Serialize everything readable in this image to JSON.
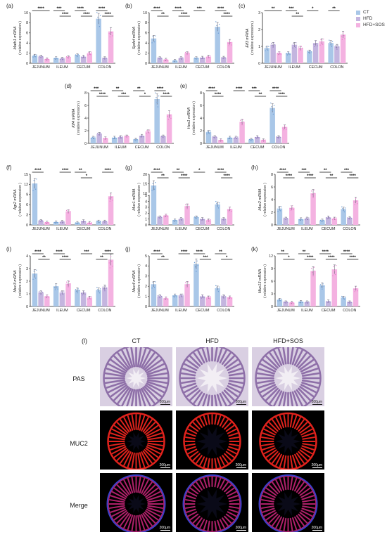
{
  "categories": [
    "JEJUNUM",
    "ILEUM",
    "CECUM",
    "COLON"
  ],
  "legend": [
    {
      "name": "CT",
      "color": "#a9c7e8"
    },
    {
      "name": "HFD",
      "color": "#c4b5df"
    },
    {
      "name": "HFD+SOS",
      "color": "#f4b2e1"
    }
  ],
  "colors": {
    "CT": "#a9c7e8",
    "HFD": "#c4b5df",
    "HFDSOS": "#f4b2e1",
    "sig": "#111111"
  },
  "chart_data": [
    {
      "panel": "(a)",
      "type": "bar",
      "gene": "Math1",
      "ylabel_italic": "Math1 mRNA",
      "ylabel_sub": "( relative expression )",
      "ylim": [
        0,
        10
      ],
      "ticks": [
        0,
        2,
        4,
        6,
        8,
        10
      ],
      "categories": [
        "JEJUNUM",
        "ILEUM",
        "CECUM",
        "COLON"
      ],
      "series": [
        {
          "name": "CT",
          "values": [
            1.5,
            1.0,
            1.6,
            8.8
          ]
        },
        {
          "name": "HFD",
          "values": [
            1.3,
            0.9,
            1.3,
            1.0
          ]
        },
        {
          "name": "HFD+SOS",
          "values": [
            0.8,
            1.2,
            2.0,
            6.3
          ]
        }
      ],
      "sig": [
        {
          "g": 0,
          "a": 0,
          "b": 2,
          "lvl": 0,
          "t": "****"
        },
        {
          "g": 1,
          "a": 0,
          "b": 1,
          "lvl": 0,
          "t": "***"
        },
        {
          "g": 1,
          "a": 1,
          "b": 2,
          "lvl": 1,
          "t": "****"
        },
        {
          "g": 2,
          "a": 0,
          "b": 1,
          "lvl": 0,
          "t": "****"
        },
        {
          "g": 2,
          "a": 1,
          "b": 2,
          "lvl": 1,
          "t": "****"
        },
        {
          "g": 3,
          "a": 0,
          "b": 1,
          "lvl": 0,
          "t": "****"
        },
        {
          "g": 3,
          "a": 1,
          "b": 2,
          "lvl": 1,
          "t": "****"
        }
      ]
    },
    {
      "panel": "(b)",
      "type": "bar",
      "gene": "Spdef",
      "ylabel_italic": "Spdef mRNA",
      "ylabel_sub": "( relative expression )",
      "ylim": [
        0,
        10
      ],
      "ticks": [
        0,
        2,
        4,
        6,
        8,
        10
      ],
      "categories": [
        "JEJUNUM",
        "ILEUM",
        "CECUM",
        "COLON"
      ],
      "series": [
        {
          "name": "CT",
          "values": [
            4.9,
            0.5,
            1.0,
            7.2
          ]
        },
        {
          "name": "HFD",
          "values": [
            1.0,
            1.0,
            1.1,
            1.1
          ]
        },
        {
          "name": "HFD+SOS",
          "values": [
            0.7,
            2.0,
            1.3,
            4.2
          ]
        }
      ],
      "sig": [
        {
          "g": 0,
          "a": 0,
          "b": 1,
          "lvl": 0,
          "t": "****"
        },
        {
          "g": 0,
          "a": 1,
          "b": 2,
          "lvl": 1,
          "t": "**"
        },
        {
          "g": 1,
          "a": 0,
          "b": 1,
          "lvl": 0,
          "t": "****"
        },
        {
          "g": 1,
          "a": 1,
          "b": 2,
          "lvl": 1,
          "t": "****"
        },
        {
          "g": 2,
          "a": 0,
          "b": 1,
          "lvl": 0,
          "t": "***"
        },
        {
          "g": 3,
          "a": 0,
          "b": 1,
          "lvl": 0,
          "t": "****"
        },
        {
          "g": 3,
          "a": 1,
          "b": 2,
          "lvl": 1,
          "t": "****"
        }
      ]
    },
    {
      "panel": "(c)",
      "type": "bar",
      "gene": "Elf3",
      "ylabel_italic": "Elf3 mRNA",
      "ylabel_sub": "( relative expression )",
      "ylim": [
        0,
        3
      ],
      "ticks": [
        0,
        1,
        2,
        3
      ],
      "categories": [
        "JEJUNUM",
        "ILEUM",
        "CECUM",
        "COLON"
      ],
      "series": [
        {
          "name": "CT",
          "values": [
            0.9,
            0.6,
            0.7,
            1.2
          ]
        },
        {
          "name": "HFD",
          "values": [
            1.1,
            1.1,
            1.2,
            1.0
          ]
        },
        {
          "name": "HFD+SOS",
          "values": [
            0.6,
            0.9,
            1.3,
            1.7
          ]
        }
      ],
      "sig": [
        {
          "g": 0,
          "a": 0,
          "b": 2,
          "lvl": 0,
          "t": "**"
        },
        {
          "g": 1,
          "a": 0,
          "b": 1,
          "lvl": 0,
          "t": "***"
        },
        {
          "g": 1,
          "a": 1,
          "b": 2,
          "lvl": 1,
          "t": "**"
        },
        {
          "g": 2,
          "a": 0,
          "b": 1,
          "lvl": 0,
          "t": "*"
        },
        {
          "g": 3,
          "a": 0,
          "b": 1,
          "lvl": 0,
          "t": "**"
        }
      ]
    },
    {
      "panel": "(d)",
      "type": "bar",
      "gene": "Klf4",
      "ylabel_italic": "Klf4 mRNA",
      "ylabel_sub": "( relative expression )",
      "ylim": [
        0,
        8
      ],
      "ticks": [
        0,
        2,
        4,
        6,
        8
      ],
      "categories": [
        "JEJUNUM",
        "ILEUM",
        "CECUM",
        "COLON"
      ],
      "series": [
        {
          "name": "CT",
          "values": [
            0.9,
            0.9,
            0.6,
            7.0
          ]
        },
        {
          "name": "HFD",
          "values": [
            1.5,
            1.0,
            1.2,
            1.1
          ]
        },
        {
          "name": "HFD+SOS",
          "values": [
            0.8,
            1.1,
            1.9,
            4.6
          ]
        }
      ],
      "sig": [
        {
          "g": 0,
          "a": 0,
          "b": 1,
          "lvl": 0,
          "t": "***"
        },
        {
          "g": 0,
          "a": 1,
          "b": 2,
          "lvl": 1,
          "t": "****"
        },
        {
          "g": 1,
          "a": 0,
          "b": 1,
          "lvl": 0,
          "t": "**"
        },
        {
          "g": 1,
          "a": 1,
          "b": 2,
          "lvl": 1,
          "t": "***"
        },
        {
          "g": 2,
          "a": 0,
          "b": 1,
          "lvl": 0,
          "t": "**"
        },
        {
          "g": 2,
          "a": 1,
          "b": 2,
          "lvl": 1,
          "t": "*"
        },
        {
          "g": 3,
          "a": 0,
          "b": 1,
          "lvl": 0,
          "t": "****"
        },
        {
          "g": 3,
          "a": 1,
          "b": 2,
          "lvl": 1,
          "t": "****"
        }
      ]
    },
    {
      "panel": "(e)",
      "type": "bar",
      "gene": "Hes1",
      "ylabel_italic": "Hes1 mRNA",
      "ylabel_sub": "( relative expression )",
      "ylim": [
        0,
        8
      ],
      "ticks": [
        0,
        2,
        4,
        6,
        8
      ],
      "categories": [
        "JEJUNUM",
        "ILEUM",
        "CECUM",
        "COLON"
      ],
      "series": [
        {
          "name": "CT",
          "values": [
            1.8,
            0.9,
            0.6,
            5.6
          ]
        },
        {
          "name": "HFD",
          "values": [
            1.0,
            0.9,
            1.0,
            1.0
          ]
        },
        {
          "name": "HFD+SOS",
          "values": [
            0.5,
            3.4,
            0.5,
            2.6
          ]
        }
      ],
      "sig": [
        {
          "g": 0,
          "a": 0,
          "b": 1,
          "lvl": 0,
          "t": "****"
        },
        {
          "g": 0,
          "a": 1,
          "b": 2,
          "lvl": 1,
          "t": "****"
        },
        {
          "g": 1,
          "a": 1,
          "b": 2,
          "lvl": 0,
          "t": "****"
        },
        {
          "g": 2,
          "a": 0,
          "b": 1,
          "lvl": 0,
          "t": "***"
        },
        {
          "g": 2,
          "a": 1,
          "b": 2,
          "lvl": 1,
          "t": "**"
        },
        {
          "g": 3,
          "a": 0,
          "b": 1,
          "lvl": 0,
          "t": "****"
        },
        {
          "g": 3,
          "a": 1,
          "b": 2,
          "lvl": 1,
          "t": "****"
        }
      ]
    },
    {
      "panel": "(f)",
      "type": "bar",
      "gene": "Agr2",
      "ylabel_italic": "Agr2 mRNA",
      "ylabel_sub": "( relative expression )",
      "ylim": [
        0,
        15
      ],
      "ticks": [
        0,
        3,
        6,
        9,
        12,
        15
      ],
      "categories": [
        "JEJUNUM",
        "ILEUM",
        "CECUM",
        "COLON"
      ],
      "series": [
        {
          "name": "CT",
          "values": [
            12.3,
            0.8,
            0.6,
            1.0
          ]
        },
        {
          "name": "HFD",
          "values": [
            1.2,
            0.9,
            1.1,
            1.0
          ]
        },
        {
          "name": "HFD+SOS",
          "values": [
            0.7,
            4.0,
            0.6,
            8.5
          ]
        }
      ],
      "sig": [
        {
          "g": 0,
          "a": 0,
          "b": 1,
          "lvl": 0,
          "t": "****"
        },
        {
          "g": 1,
          "a": 1,
          "b": 2,
          "lvl": 0,
          "t": "****"
        },
        {
          "g": 2,
          "a": 0,
          "b": 1,
          "lvl": 0,
          "t": "**"
        },
        {
          "g": 2,
          "a": 1,
          "b": 2,
          "lvl": 1,
          "t": "*"
        },
        {
          "g": 3,
          "a": 1,
          "b": 2,
          "lvl": 0,
          "t": "****"
        }
      ]
    },
    {
      "panel": "(g)",
      "type": "bar",
      "gene": "Muc1",
      "ylabel_italic": "Muc1 mRNA",
      "ylabel_sub": "( relative expression )",
      "ylim": [
        0,
        20
      ],
      "ticks": [
        0,
        1,
        2,
        3,
        4,
        5,
        10,
        15,
        20
      ],
      "axis_break": [
        5,
        10
      ],
      "categories": [
        "JEJUNUM",
        "ILEUM",
        "CECUM",
        "COLON"
      ],
      "series": [
        {
          "name": "CT",
          "values": [
            14.2,
            0.8,
            1.3,
            3.5
          ]
        },
        {
          "name": "HFD",
          "values": [
            1.3,
            1.0,
            1.0,
            1.0
          ]
        },
        {
          "name": "HFD+SOS",
          "values": [
            1.6,
            3.2,
            0.8,
            2.7
          ]
        }
      ],
      "sig": [
        {
          "g": 0,
          "a": 0,
          "b": 1,
          "lvl": 0,
          "t": "****"
        },
        {
          "g": 0,
          "a": 1,
          "b": 2,
          "lvl": 1,
          "t": "**"
        },
        {
          "g": 1,
          "a": 0,
          "b": 1,
          "lvl": 0,
          "t": "**"
        },
        {
          "g": 1,
          "a": 1,
          "b": 2,
          "lvl": 1,
          "t": "****"
        },
        {
          "g": 2,
          "a": 0,
          "b": 1,
          "lvl": 0,
          "t": "*"
        },
        {
          "g": 3,
          "a": 0,
          "b": 1,
          "lvl": 0,
          "t": "****"
        },
        {
          "g": 3,
          "a": 1,
          "b": 2,
          "lvl": 1,
          "t": "****"
        }
      ]
    },
    {
      "panel": "(h)",
      "type": "bar",
      "gene": "Muc2",
      "ylabel_italic": "Muc2 mRNA",
      "ylabel_sub": "( relative expression )",
      "ylim": [
        0,
        8
      ],
      "ticks": [
        0,
        2,
        4,
        6,
        8
      ],
      "categories": [
        "JEJUNUM",
        "ILEUM",
        "CECUM",
        "COLON"
      ],
      "series": [
        {
          "name": "CT",
          "values": [
            2.6,
            0.9,
            0.7,
            2.5
          ]
        },
        {
          "name": "HFD",
          "values": [
            1.0,
            1.0,
            1.2,
            1.1
          ]
        },
        {
          "name": "HFD+SOS",
          "values": [
            2.7,
            5.0,
            1.0,
            3.9
          ]
        }
      ],
      "sig": [
        {
          "g": 0,
          "a": 0,
          "b": 1,
          "lvl": 0,
          "t": "****"
        },
        {
          "g": 0,
          "a": 1,
          "b": 2,
          "lvl": 1,
          "t": "****"
        },
        {
          "g": 1,
          "a": 0,
          "b": 1,
          "lvl": 0,
          "t": "***"
        },
        {
          "g": 1,
          "a": 1,
          "b": 2,
          "lvl": 1,
          "t": "****"
        },
        {
          "g": 2,
          "a": 0,
          "b": 1,
          "lvl": 0,
          "t": "**"
        },
        {
          "g": 2,
          "a": 1,
          "b": 2,
          "lvl": 1,
          "t": "**"
        },
        {
          "g": 3,
          "a": 0,
          "b": 1,
          "lvl": 0,
          "t": "***"
        },
        {
          "g": 3,
          "a": 1,
          "b": 2,
          "lvl": 1,
          "t": "****"
        }
      ]
    },
    {
      "panel": "(i)",
      "type": "bar",
      "gene": "Muc3",
      "ylabel_italic": "Muc3 mRNA",
      "ylabel_sub": "( relative expression )",
      "ylim": [
        0,
        4
      ],
      "ticks": [
        0,
        1,
        2,
        3,
        4
      ],
      "categories": [
        "JEJUNUM",
        "ILEUM",
        "CECUM",
        "COLON"
      ],
      "series": [
        {
          "name": "CT",
          "values": [
            2.6,
            1.6,
            1.3,
            1.3
          ]
        },
        {
          "name": "HFD",
          "values": [
            1.1,
            1.1,
            1.1,
            1.5
          ]
        },
        {
          "name": "HFD+SOS",
          "values": [
            0.8,
            1.8,
            0.7,
            3.7
          ]
        }
      ],
      "sig": [
        {
          "g": 0,
          "a": 0,
          "b": 1,
          "lvl": 0,
          "t": "****"
        },
        {
          "g": 0,
          "a": 1,
          "b": 2,
          "lvl": 1,
          "t": "**"
        },
        {
          "g": 1,
          "a": 0,
          "b": 1,
          "lvl": 0,
          "t": "****"
        },
        {
          "g": 1,
          "a": 1,
          "b": 2,
          "lvl": 1,
          "t": "****"
        },
        {
          "g": 2,
          "a": 1,
          "b": 2,
          "lvl": 0,
          "t": "***"
        },
        {
          "g": 3,
          "a": 0,
          "b": 1,
          "lvl": 1,
          "t": "**"
        },
        {
          "g": 3,
          "a": 1,
          "b": 2,
          "lvl": 0,
          "t": "****"
        }
      ]
    },
    {
      "panel": "(j)",
      "type": "bar",
      "gene": "Muc4",
      "ylabel_italic": "Muc4 mRNA",
      "ylabel_sub": "( relative expression )",
      "ylim": [
        0,
        5
      ],
      "ticks": [
        0,
        1,
        2,
        3,
        4,
        5
      ],
      "categories": [
        "JEJUNUM",
        "ILEUM",
        "CECUM",
        "COLON"
      ],
      "series": [
        {
          "name": "CT",
          "values": [
            2.2,
            1.1,
            4.2,
            1.8
          ]
        },
        {
          "name": "HFD",
          "values": [
            1.0,
            1.1,
            1.0,
            1.0
          ]
        },
        {
          "name": "HFD+SOS",
          "values": [
            0.8,
            2.2,
            0.9,
            0.9
          ]
        }
      ],
      "sig": [
        {
          "g": 0,
          "a": 0,
          "b": 1,
          "lvl": 0,
          "t": "****"
        },
        {
          "g": 0,
          "a": 1,
          "b": 2,
          "lvl": 1,
          "t": "**"
        },
        {
          "g": 1,
          "a": 1,
          "b": 2,
          "lvl": 0,
          "t": "****"
        },
        {
          "g": 2,
          "a": 0,
          "b": 1,
          "lvl": 0,
          "t": "****"
        },
        {
          "g": 2,
          "a": 1,
          "b": 2,
          "lvl": 1,
          "t": "***"
        },
        {
          "g": 3,
          "a": 0,
          "b": 1,
          "lvl": 0,
          "t": "**"
        },
        {
          "g": 3,
          "a": 1,
          "b": 2,
          "lvl": 1,
          "t": "*"
        }
      ]
    },
    {
      "panel": "(k)",
      "type": "bar",
      "gene": "Muc13",
      "ylabel_italic": "Muc13 mRNA",
      "ylabel_sub": "( relative expression )",
      "ylim": [
        0,
        12
      ],
      "ticks": [
        0,
        3,
        6,
        9,
        12
      ],
      "categories": [
        "JEJUNUM",
        "ILEUM",
        "CECUM",
        "COLON"
      ],
      "series": [
        {
          "name": "CT",
          "values": [
            1.6,
            1.1,
            5.0,
            2.1
          ]
        },
        {
          "name": "HFD",
          "values": [
            1.0,
            1.0,
            1.2,
            1.0
          ]
        },
        {
          "name": "HFD+SOS",
          "values": [
            0.9,
            8.4,
            8.8,
            4.3
          ]
        }
      ],
      "sig": [
        {
          "g": 0,
          "a": 0,
          "b": 1,
          "lvl": 0,
          "t": "**"
        },
        {
          "g": 0,
          "a": 1,
          "b": 2,
          "lvl": 1,
          "t": "*"
        },
        {
          "g": 1,
          "a": 0,
          "b": 1,
          "lvl": 0,
          "t": "**"
        },
        {
          "g": 1,
          "a": 1,
          "b": 2,
          "lvl": 1,
          "t": "****"
        },
        {
          "g": 2,
          "a": 0,
          "b": 1,
          "lvl": 0,
          "t": "****"
        },
        {
          "g": 2,
          "a": 1,
          "b": 2,
          "lvl": 1,
          "t": "****"
        },
        {
          "g": 3,
          "a": 0,
          "b": 1,
          "lvl": 0,
          "t": "****"
        },
        {
          "g": 3,
          "a": 1,
          "b": 2,
          "lvl": 1,
          "t": "****"
        }
      ]
    }
  ],
  "micrographs": {
    "panel_label": "(l)",
    "columns": [
      "CT",
      "HFD",
      "HFD+SOS"
    ],
    "rows": [
      "PAS",
      "MUC2",
      "Merge"
    ],
    "scale_label": "200μm"
  }
}
